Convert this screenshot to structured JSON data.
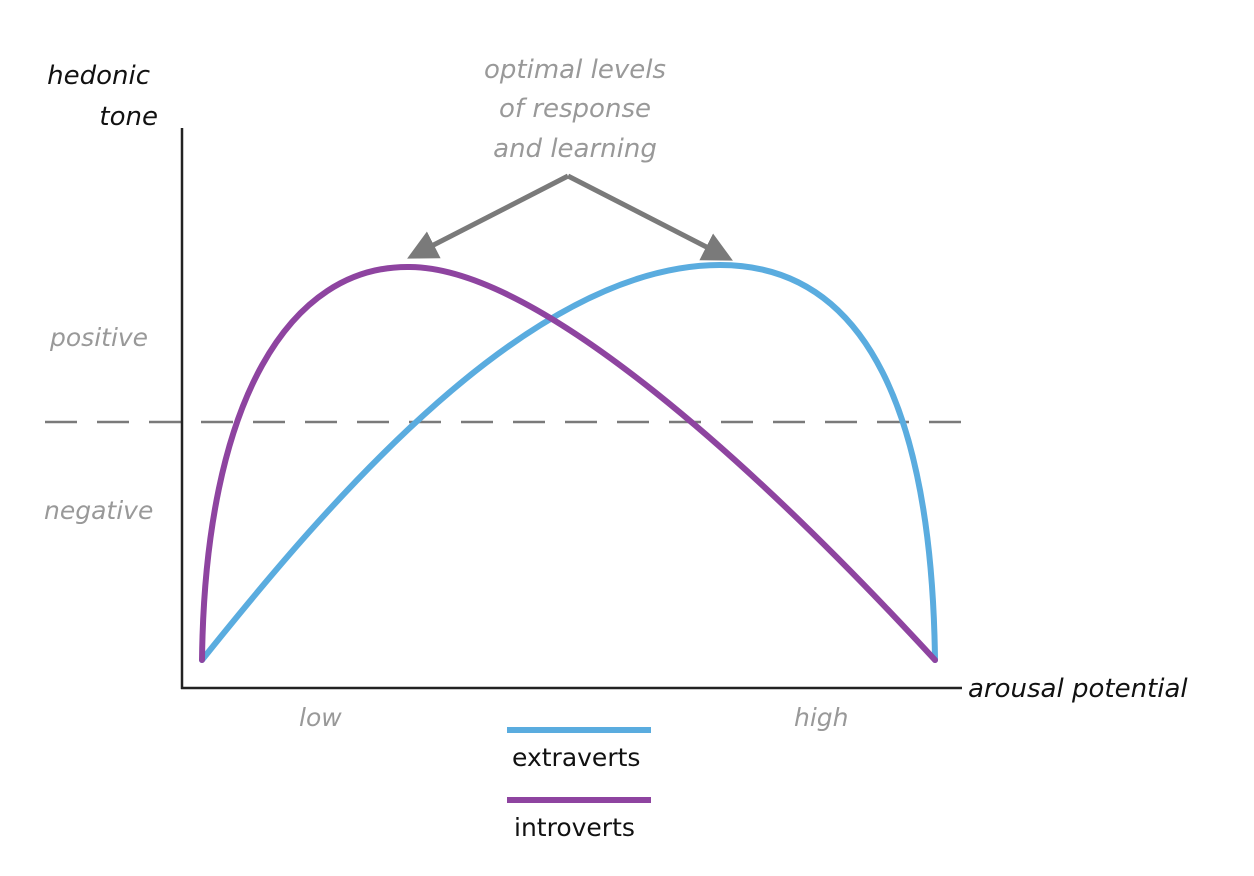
{
  "y_axis_label": [
    "hedonic",
    "tone"
  ],
  "x_axis_label": "arousal potential",
  "region_labels": {
    "positive": "positive",
    "negative": "negative"
  },
  "x_ticks": {
    "low": "low",
    "high": "high"
  },
  "annotation": [
    "optimal levels",
    "of response",
    "and learning"
  ],
  "legend": [
    {
      "label": "extraverts",
      "color": "#5aacdf"
    },
    {
      "label": "introverts",
      "color": "#8e44a0"
    }
  ],
  "colors": {
    "axis": "#222222",
    "annotation": "#7a7a7a",
    "dashed": "#7a7a7a",
    "labels": "#999999"
  }
}
